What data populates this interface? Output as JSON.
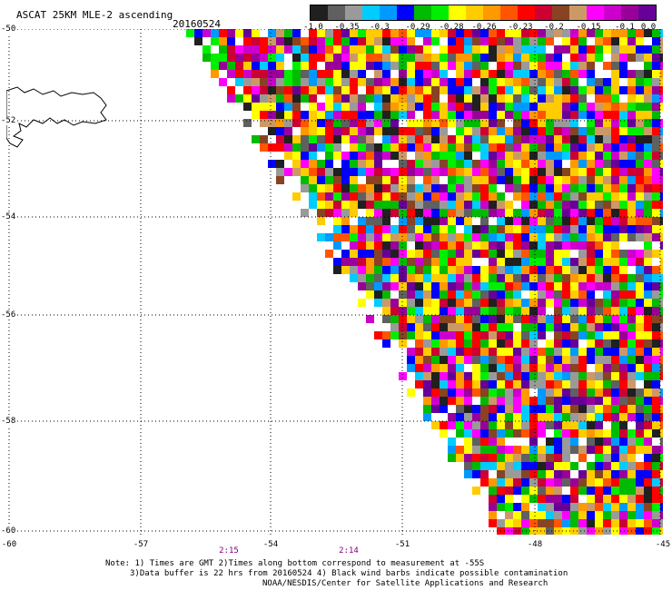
{
  "header": {
    "title": "ASCAT 25KM MLE-2 ascending",
    "date": "20160524"
  },
  "colorbar": {
    "colors": [
      "#202020",
      "#606060",
      "#9a9a9a",
      "#00ccff",
      "#0099ff",
      "#0000ff",
      "#00bb00",
      "#00ee00",
      "#ffff00",
      "#ffcc00",
      "#ff9900",
      "#ff5500",
      "#ff0000",
      "#cc0033",
      "#884422",
      "#cc9966",
      "#ff00ff",
      "#cc00cc",
      "#990099",
      "#660099"
    ],
    "labels": [
      "-1.0",
      "-0.35",
      "-0.3",
      "-0.29",
      "-0.28",
      "-0.26",
      "-0.23",
      "-0.2",
      "-0.15",
      "-0.1",
      "0.0"
    ]
  },
  "axes": {
    "lat_labels": [
      "-50",
      "-52",
      "-54",
      "-56",
      "-58",
      "-60"
    ],
    "lon_labels": [
      "-60",
      "-57",
      "-54",
      "-51",
      "-48",
      "-45"
    ],
    "lat_range": [
      -60,
      -50
    ],
    "lon_range": [
      -60,
      -45
    ]
  },
  "times": [
    "2:15",
    "2:14"
  ],
  "notes": {
    "line1": "Note: 1) Times are GMT 2)Times along bottom correspond to measurement at -55S",
    "line2": "3)Data buffer is 22 hrs from 20160524 4) Black wind barbs indicate possible contamination",
    "line3": "NOAA/NESDIS/Center for Satellite Applications and Research"
  }
}
